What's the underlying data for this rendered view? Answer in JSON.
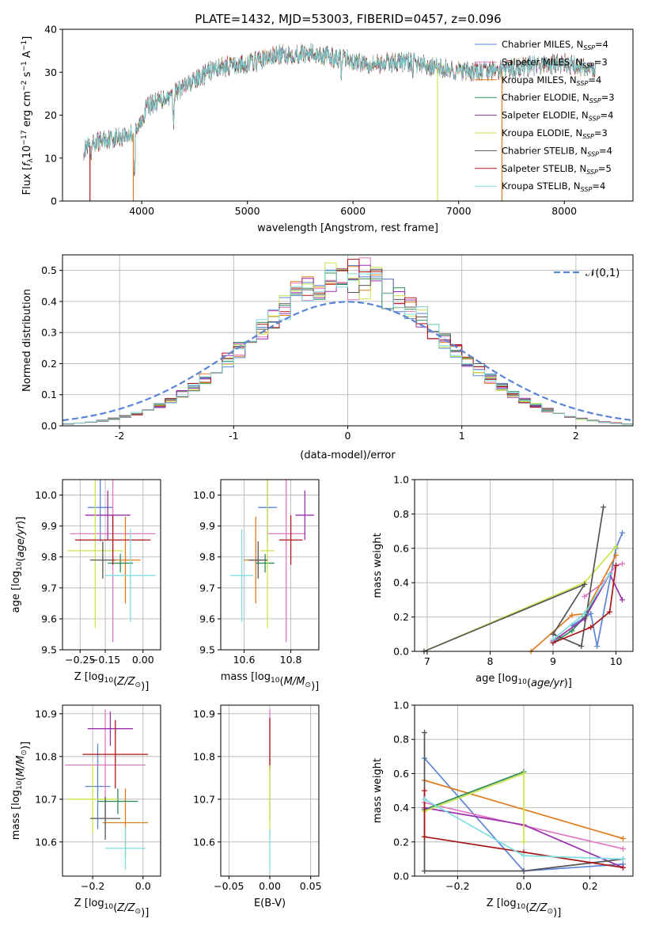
{
  "figure": {
    "title": "PLATE=1432, MJD=53003, FIBERID=0457, z=0.096",
    "colors": {
      "chabrier_miles": "#5b84d6",
      "salpeter_miles": "#e377c2",
      "kroupa_miles": "#e07b1e",
      "chabrier_elodie": "#2e8b57",
      "salpeter_elodie": "#9b2fae",
      "kroupa_elodie": "#c8e64c",
      "chabrier_stelib": "#555555",
      "salpeter_stelib": "#aa1616",
      "kroupa_stelib": "#7fdde0",
      "normal": "#5b84d6",
      "grid": "#b0b0b0"
    }
  },
  "chart_data": [
    {
      "id": "spectrum",
      "type": "line",
      "xlabel": "wavelength [Angstrom, rest frame]",
      "ylabel": "Flux [f_λ10^-17 erg cm^-2 s^-1 A^-1]",
      "xlim": [
        3250,
        8650
      ],
      "ylim": [
        0,
        40
      ],
      "xticks": [
        4000,
        5000,
        6000,
        7000,
        8000
      ],
      "yticks": [
        0,
        10,
        20,
        30,
        40
      ],
      "legend": {
        "position": "top-right",
        "entries": [
          {
            "name": "Chabrier MILES",
            "n": 4,
            "color_key": "chabrier_miles"
          },
          {
            "name": "Salpeter MILES",
            "n": 3,
            "color_key": "salpeter_miles"
          },
          {
            "name": "Kroupa MILES",
            "n": 4,
            "color_key": "kroupa_miles"
          },
          {
            "name": "Chabrier ELODIE",
            "n": 3,
            "color_key": "chabrier_elodie"
          },
          {
            "name": "Salpeter ELODIE",
            "n": 4,
            "color_key": "salpeter_elodie"
          },
          {
            "name": "Kroupa ELODIE",
            "n": 3,
            "color_key": "kroupa_elodie"
          },
          {
            "name": "Chabrier STELIB",
            "n": 4,
            "color_key": "chabrier_stelib"
          },
          {
            "name": "Salpeter STELIB",
            "n": 5,
            "color_key": "salpeter_stelib"
          },
          {
            "name": "Kroupa STELIB",
            "n": 4,
            "color_key": "kroupa_stelib"
          }
        ]
      },
      "continuum": [
        [
          3450,
          12
        ],
        [
          3600,
          14
        ],
        [
          3800,
          15
        ],
        [
          3950,
          16
        ],
        [
          4050,
          22
        ],
        [
          4300,
          25
        ],
        [
          4500,
          28
        ],
        [
          4700,
          31
        ],
        [
          5000,
          32
        ],
        [
          5300,
          34
        ],
        [
          5600,
          34.5
        ],
        [
          5900,
          33
        ],
        [
          6200,
          32
        ],
        [
          6500,
          32.5
        ],
        [
          6800,
          31
        ],
        [
          7100,
          30
        ],
        [
          7400,
          30.5
        ],
        [
          7700,
          31.5
        ],
        [
          8000,
          32
        ],
        [
          8300,
          30.5
        ]
      ],
      "dips": [
        [
          3520,
          7
        ],
        [
          3930,
          5.5
        ],
        [
          4300,
          18
        ],
        [
          5890,
          28
        ],
        [
          6565,
          28.5
        ],
        [
          7200,
          29
        ],
        [
          7600,
          29.5
        ]
      ],
      "drops": [
        [
          3510,
          "salpeter_stelib"
        ],
        [
          3920,
          "kroupa_miles"
        ],
        [
          6800,
          "kroupa_elodie"
        ],
        [
          7410,
          "kroupa_miles"
        ]
      ]
    },
    {
      "id": "residuals",
      "type": "bar",
      "xlabel": "(data-model)/error",
      "ylabel": "Normed distribution",
      "xlim": [
        -2.5,
        2.5
      ],
      "ylim": [
        0,
        0.55
      ],
      "xticks": [
        -2,
        -1,
        0,
        1,
        2
      ],
      "yticks": [
        0.0,
        0.1,
        0.2,
        0.3,
        0.4,
        0.5
      ],
      "bin_width": 0.1,
      "legend": {
        "position": "top-right",
        "entries": [
          {
            "name": "𝒩(0,1)",
            "color_key": "normal"
          }
        ]
      }
    },
    {
      "id": "z_vs_age",
      "type": "scatter",
      "xlabel": "Z [log10(Z/Z⊙)]",
      "ylabel": "age  [log10(age/yr)]",
      "xlim": [
        -0.32,
        0.07
      ],
      "ylim": [
        9.5,
        10.05
      ],
      "xticks": [
        -0.25,
        -0.15,
        0.0
      ],
      "xticklabels": [
        "−0.25",
        "−0.15",
        "0.00"
      ],
      "yticks": [
        9.5,
        9.6,
        9.7,
        9.8,
        9.9,
        10.0
      ],
      "points": [
        {
          "c": "chabrier_miles",
          "x": -0.17,
          "y": 9.96,
          "xe": 0.05,
          "ye": 0.11
        },
        {
          "c": "salpeter_miles",
          "x": -0.12,
          "y": 9.875,
          "xe": 0.17,
          "ye": 0.35
        },
        {
          "c": "kroupa_miles",
          "x": -0.07,
          "y": 9.79,
          "xe": 0.06,
          "ye": 0.14
        },
        {
          "c": "chabrier_elodie",
          "x": -0.09,
          "y": 9.78,
          "xe": 0.05,
          "ye": 0.03
        },
        {
          "c": "salpeter_elodie",
          "x": -0.14,
          "y": 9.935,
          "xe": 0.09,
          "ye": 0.08
        },
        {
          "c": "kroupa_elodie",
          "x": -0.19,
          "y": 9.82,
          "xe": 0.11,
          "ye": 0.25
        },
        {
          "c": "chabrier_stelib",
          "x": -0.16,
          "y": 9.79,
          "xe": 0.05,
          "ye": 0.06
        },
        {
          "c": "salpeter_stelib",
          "x": -0.12,
          "y": 9.855,
          "xe": 0.15,
          "ye": 0.08
        },
        {
          "c": "kroupa_stelib",
          "x": -0.05,
          "y": 9.74,
          "xe": 0.1,
          "ye": 0.15
        }
      ]
    },
    {
      "id": "mass_vs_age",
      "type": "scatter",
      "xlabel": "mass [log10(M/M⊙)]",
      "ylabel": "",
      "xlim": [
        10.5,
        10.92
      ],
      "ylim": [
        9.5,
        10.05
      ],
      "xticks": [
        10.6,
        10.8
      ],
      "yticks": [
        9.5,
        9.6,
        9.7,
        9.8,
        9.9,
        10.0
      ],
      "points": [
        {
          "c": "chabrier_miles",
          "x": 10.7,
          "y": 9.96,
          "xe": 0.04,
          "ye": 0.11
        },
        {
          "c": "salpeter_miles",
          "x": 10.78,
          "y": 9.875,
          "xe": 0.08,
          "ye": 0.35
        },
        {
          "c": "kroupa_miles",
          "x": 10.65,
          "y": 9.79,
          "xe": 0.05,
          "ye": 0.14
        },
        {
          "c": "chabrier_elodie",
          "x": 10.69,
          "y": 9.78,
          "xe": 0.04,
          "ye": 0.03
        },
        {
          "c": "salpeter_elodie",
          "x": 10.86,
          "y": 9.935,
          "xe": 0.04,
          "ye": 0.08
        },
        {
          "c": "kroupa_elodie",
          "x": 10.7,
          "y": 9.82,
          "xe": 0.03,
          "ye": 0.25
        },
        {
          "c": "chabrier_stelib",
          "x": 10.66,
          "y": 9.79,
          "xe": 0.04,
          "ye": 0.06
        },
        {
          "c": "salpeter_stelib",
          "x": 10.8,
          "y": 9.855,
          "xe": 0.05,
          "ye": 0.08
        },
        {
          "c": "kroupa_stelib",
          "x": 10.59,
          "y": 9.74,
          "xe": 0.05,
          "ye": 0.15
        }
      ]
    },
    {
      "id": "weight_vs_age",
      "type": "line",
      "xlabel": "age  [log10(age/yr)]",
      "ylabel": "mass weight",
      "xlim": [
        6.8,
        10.27
      ],
      "ylim": [
        0,
        1.0
      ],
      "xticks": [
        7,
        8,
        9,
        10
      ],
      "yticks": [
        0.0,
        0.2,
        0.4,
        0.6,
        0.8,
        1.0
      ],
      "series": [
        {
          "c": "chabrier_miles",
          "x": [
            9.3,
            9.6,
            9.7,
            10.0,
            10.1
          ],
          "y": [
            0.15,
            0.22,
            0.03,
            0.6,
            0.69
          ]
        },
        {
          "c": "salpeter_miles",
          "x": [
            9.5,
            9.8,
            10.0,
            10.1
          ],
          "y": [
            0.32,
            0.4,
            0.5,
            0.51
          ]
        },
        {
          "c": "kroupa_miles",
          "x": [
            8.65,
            9.3,
            9.5,
            10.0
          ],
          "y": [
            0.0,
            0.21,
            0.22,
            0.56
          ]
        },
        {
          "c": "chabrier_elodie",
          "x": [
            9.0,
            9.3,
            9.5,
            9.9
          ],
          "y": [
            0.05,
            0.12,
            0.2,
            0.45
          ]
        },
        {
          "c": "salpeter_elodie",
          "x": [
            9.0,
            9.5,
            9.9,
            10.1
          ],
          "y": [
            0.06,
            0.19,
            0.45,
            0.3
          ]
        },
        {
          "c": "kroupa_elodie",
          "x": [
            6.95,
            9.5,
            10.0
          ],
          "y": [
            0.0,
            0.4,
            0.61
          ]
        },
        {
          "c": "chabrier_stelib",
          "x": [
            6.95,
            9.5,
            9.0,
            9.45,
            9.8
          ],
          "y": [
            0.0,
            0.39,
            0.1,
            0.03,
            0.84
          ]
        },
        {
          "c": "salpeter_stelib",
          "x": [
            9.0,
            9.6,
            9.9,
            10.0
          ],
          "y": [
            0.05,
            0.14,
            0.23,
            0.5
          ]
        },
        {
          "c": "kroupa_stelib",
          "x": [
            9.0,
            9.5,
            9.9
          ],
          "y": [
            0.07,
            0.22,
            0.45
          ]
        }
      ]
    },
    {
      "id": "z_vs_mass",
      "type": "scatter",
      "xlabel": "Z [log10(Z/Z⊙)]",
      "ylabel": "mass [log10(M/M⊙)]",
      "xlim": [
        -0.32,
        0.07
      ],
      "ylim": [
        10.52,
        10.92
      ],
      "xticks": [
        -0.2,
        0.0
      ],
      "xticklabels": [
        "−0.2",
        "0.0"
      ],
      "yticks": [
        10.6,
        10.7,
        10.8,
        10.9
      ],
      "points": [
        {
          "c": "chabrier_miles",
          "x": -0.18,
          "y": 10.73,
          "xe": 0.05,
          "ye": 0.1
        },
        {
          "c": "salpeter_miles",
          "x": -0.15,
          "y": 10.78,
          "xe": 0.16,
          "ye": 0.13
        },
        {
          "c": "kroupa_miles",
          "x": -0.07,
          "y": 10.645,
          "xe": 0.09,
          "ye": 0.08
        },
        {
          "c": "chabrier_elodie",
          "x": -0.1,
          "y": 10.695,
          "xe": 0.08,
          "ye": 0.03
        },
        {
          "c": "salpeter_elodie",
          "x": -0.13,
          "y": 10.865,
          "xe": 0.09,
          "ye": 0.04
        },
        {
          "c": "kroupa_elodie",
          "x": -0.2,
          "y": 10.7,
          "xe": 0.1,
          "ye": 0.08
        },
        {
          "c": "chabrier_stelib",
          "x": -0.15,
          "y": 10.655,
          "xe": 0.06,
          "ye": 0.05
        },
        {
          "c": "salpeter_stelib",
          "x": -0.11,
          "y": 10.805,
          "xe": 0.13,
          "ye": 0.08
        },
        {
          "c": "kroupa_stelib",
          "x": -0.07,
          "y": 10.585,
          "xe": 0.08,
          "ye": 0.05
        }
      ]
    },
    {
      "id": "ebv_vs_mass",
      "type": "scatter",
      "xlabel": "E(B-V)",
      "ylabel": "",
      "xlim": [
        -0.06,
        0.06
      ],
      "ylim": [
        10.52,
        10.92
      ],
      "xticks": [
        -0.05,
        0.0,
        0.05
      ],
      "xticklabels": [
        "−0.05",
        "0.00",
        "0.05"
      ],
      "yticks": [
        10.6,
        10.7,
        10.8,
        10.9
      ],
      "points": [
        {
          "c": "salpeter_miles",
          "x": 0,
          "y": 10.78,
          "xe": 0,
          "ye": 0.13
        },
        {
          "c": "salpeter_stelib",
          "x": 0,
          "y": 10.83,
          "xe": 0,
          "ye": 0.06
        },
        {
          "c": "kroupa_elodie",
          "x": 0,
          "y": 10.7,
          "xe": 0,
          "ye": 0.08
        },
        {
          "c": "kroupa_stelib",
          "x": 0,
          "y": 10.58,
          "xe": 0,
          "ye": 0.05
        }
      ]
    },
    {
      "id": "weight_vs_z",
      "type": "line",
      "xlabel": "Z [log10(Z/Z⊙)]",
      "ylabel": "mass weight",
      "xlim": [
        -0.33,
        0.33
      ],
      "ylim": [
        0,
        1.0
      ],
      "xticks": [
        -0.2,
        0.0,
        0.2
      ],
      "xticklabels": [
        "−0.2",
        "0.0",
        "0.2"
      ],
      "yticks": [
        0.0,
        0.2,
        0.4,
        0.6,
        0.8,
        1.0
      ],
      "series": [
        {
          "c": "chabrier_miles",
          "x": [
            -0.3,
            0.0,
            0.3
          ],
          "y": [
            0.69,
            0.03,
            0.07
          ]
        },
        {
          "c": "salpeter_miles",
          "x": [
            -0.3,
            0.3
          ],
          "y": [
            0.43,
            0.16
          ]
        },
        {
          "c": "kroupa_miles",
          "x": [
            -0.3,
            0.3
          ],
          "y": [
            0.56,
            0.22
          ]
        },
        {
          "c": "chabrier_elodie",
          "x": [
            -0.3,
            0.0
          ],
          "y": [
            0.39,
            0.61
          ]
        },
        {
          "c": "salpeter_elodie",
          "x": [
            -0.3,
            0.0,
            0.3
          ],
          "y": [
            0.4,
            0.3,
            0.05
          ]
        },
        {
          "c": "kroupa_elodie",
          "x": [
            -0.3,
            0.0,
            0.0
          ],
          "y": [
            0.38,
            0.6,
            0.2
          ]
        },
        {
          "c": "chabrier_stelib",
          "x": [
            -0.3,
            -0.3,
            0.0,
            0.3
          ],
          "y": [
            0.84,
            0.03,
            0.03,
            0.1
          ]
        },
        {
          "c": "salpeter_stelib",
          "x": [
            -0.3,
            -0.3,
            0.3,
            0.0
          ],
          "y": [
            0.5,
            0.23,
            0.05,
            0.14
          ]
        },
        {
          "c": "kroupa_stelib",
          "x": [
            -0.3,
            0.0,
            0.3
          ],
          "y": [
            0.45,
            0.12,
            0.1
          ]
        }
      ]
    }
  ]
}
